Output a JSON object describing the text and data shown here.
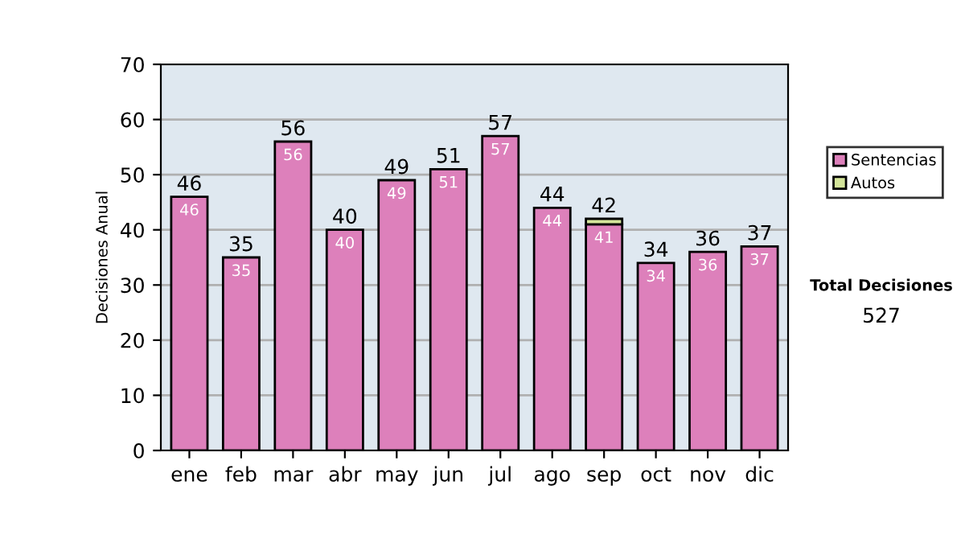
{
  "chart_data": {
    "type": "bar",
    "stacked": true,
    "ylabel": "Decisiones Anual",
    "categories": [
      "ene",
      "feb",
      "mar",
      "abr",
      "may",
      "jun",
      "jul",
      "ago",
      "sep",
      "oct",
      "nov",
      "dic"
    ],
    "series": [
      {
        "name": "Sentencias",
        "color": "#dd80bb",
        "values": [
          46,
          35,
          56,
          40,
          49,
          51,
          57,
          44,
          41,
          34,
          36,
          37
        ],
        "value_labels": [
          "46",
          "35",
          "56",
          "40",
          "49",
          "51",
          "57",
          "44",
          "41",
          "34",
          "36",
          "37"
        ]
      },
      {
        "name": "Autos",
        "color": "#d4e59a",
        "values": [
          0,
          0,
          0,
          0,
          0,
          0,
          0,
          0,
          1,
          0,
          0,
          0
        ]
      }
    ],
    "totals": [
      "46",
      "35",
      "56",
      "40",
      "49",
      "51",
      "57",
      "44",
      "42",
      "34",
      "36",
      "37"
    ],
    "ylim": [
      0,
      70
    ],
    "yticks": [
      0,
      10,
      20,
      30,
      40,
      50,
      60,
      70
    ],
    "grid": "y",
    "legend": "right",
    "annotations": [
      "Total Decisiones",
      "527"
    ]
  }
}
